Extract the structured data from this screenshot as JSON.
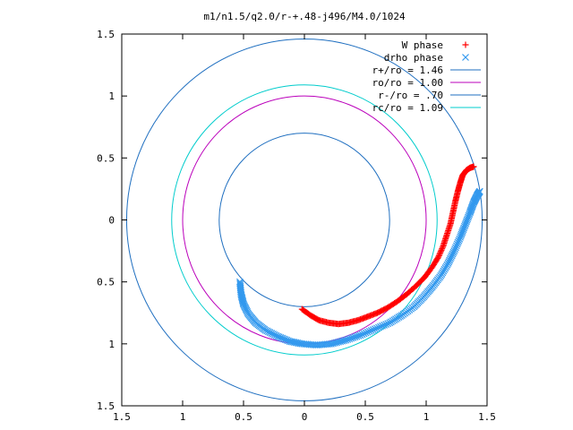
{
  "chart_data": {
    "type": "scatter",
    "title": "m1/n1.5/q2.0/r-+.48-j496/M4.0/1024",
    "xlabel": "",
    "ylabel": "",
    "xlim": [
      -1.5,
      1.5
    ],
    "ylim": [
      -1.5,
      1.5
    ],
    "x_ticks": [
      {
        "value": -1.5,
        "label": "1.5"
      },
      {
        "value": -1.0,
        "label": "1"
      },
      {
        "value": -0.5,
        "label": "0.5"
      },
      {
        "value": 0.0,
        "label": "0"
      },
      {
        "value": 0.5,
        "label": "0.5"
      },
      {
        "value": 1.0,
        "label": "1"
      },
      {
        "value": 1.5,
        "label": "1.5"
      }
    ],
    "y_ticks": [
      {
        "value": 1.5,
        "label": "1.5"
      },
      {
        "value": 1.0,
        "label": "1"
      },
      {
        "value": 0.5,
        "label": "0.5"
      },
      {
        "value": 0.0,
        "label": "0"
      },
      {
        "value": -0.5,
        "label": "0.5"
      },
      {
        "value": -1.0,
        "label": "1"
      },
      {
        "value": -1.5,
        "label": "1.5"
      }
    ],
    "grid": false,
    "legend_position": "top-right",
    "series": [
      {
        "name": "W phase",
        "kind": "points",
        "marker": "plus",
        "color": "#ff0000",
        "points": [
          [
            -0.02,
            -0.72
          ],
          [
            0.05,
            -0.77
          ],
          [
            0.12,
            -0.81
          ],
          [
            0.2,
            -0.83
          ],
          [
            0.28,
            -0.84
          ],
          [
            0.36,
            -0.83
          ],
          [
            0.44,
            -0.81
          ],
          [
            0.52,
            -0.78
          ],
          [
            0.6,
            -0.75
          ],
          [
            0.68,
            -0.71
          ],
          [
            0.76,
            -0.66
          ],
          [
            0.84,
            -0.6
          ],
          [
            0.92,
            -0.53
          ],
          [
            0.99,
            -0.46
          ],
          [
            1.05,
            -0.38
          ],
          [
            1.1,
            -0.3
          ],
          [
            1.14,
            -0.21
          ],
          [
            1.17,
            -0.12
          ],
          [
            1.2,
            -0.03
          ],
          [
            1.22,
            0.06
          ],
          [
            1.24,
            0.15
          ],
          [
            1.26,
            0.23
          ],
          [
            1.28,
            0.3
          ],
          [
            1.3,
            0.36
          ],
          [
            1.33,
            0.4
          ],
          [
            1.36,
            0.42
          ],
          [
            1.39,
            0.43
          ]
        ]
      },
      {
        "name": "drho phase",
        "kind": "points",
        "marker": "cross",
        "color": "#3399ee",
        "points": [
          [
            -0.53,
            -0.5
          ],
          [
            -0.52,
            -0.6
          ],
          [
            -0.5,
            -0.68
          ],
          [
            -0.46,
            -0.76
          ],
          [
            -0.4,
            -0.83
          ],
          [
            -0.32,
            -0.89
          ],
          [
            -0.22,
            -0.94
          ],
          [
            -0.12,
            -0.98
          ],
          [
            -0.02,
            -1.0
          ],
          [
            0.1,
            -1.01
          ],
          [
            0.22,
            -1.0
          ],
          [
            0.34,
            -0.97
          ],
          [
            0.46,
            -0.93
          ],
          [
            0.58,
            -0.88
          ],
          [
            0.7,
            -0.83
          ],
          [
            0.8,
            -0.77
          ],
          [
            0.9,
            -0.7
          ],
          [
            0.98,
            -0.62
          ],
          [
            1.05,
            -0.54
          ],
          [
            1.12,
            -0.45
          ],
          [
            1.18,
            -0.35
          ],
          [
            1.23,
            -0.25
          ],
          [
            1.28,
            -0.14
          ],
          [
            1.32,
            -0.04
          ],
          [
            1.36,
            0.06
          ],
          [
            1.39,
            0.14
          ],
          [
            1.42,
            0.2
          ],
          [
            1.44,
            0.23
          ]
        ]
      },
      {
        "name": "r+/ro = 1.46",
        "kind": "circle",
        "radius": 1.46,
        "color": "#1f6fc0"
      },
      {
        "name": "ro/ro = 1.00",
        "kind": "circle",
        "radius": 1.0,
        "color": "#bb00bb"
      },
      {
        "name": "r-/ro = .70",
        "kind": "circle",
        "radius": 0.7,
        "color": "#1f6fc0"
      },
      {
        "name": "rc/ro = 1.09",
        "kind": "circle",
        "radius": 1.09,
        "color": "#00cccc"
      }
    ]
  }
}
